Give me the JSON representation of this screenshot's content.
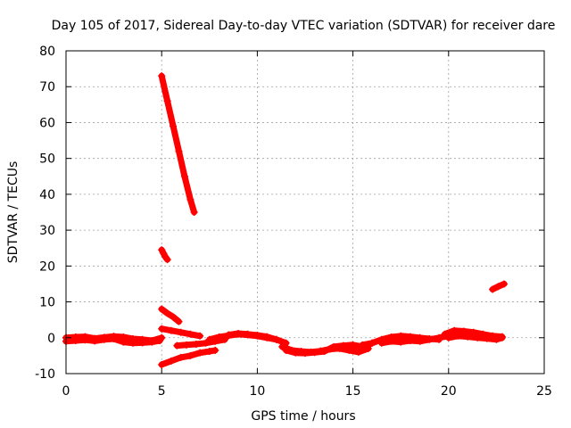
{
  "chart_data": {
    "type": "scatter",
    "title": "Day 105 of 2017, Sidereal Day-to-day VTEC variation (SDTVAR) for receiver dare",
    "xlabel": "GPS time / hours",
    "ylabel": "SDTVAR / TECUs",
    "xlim": [
      0,
      25
    ],
    "ylim": [
      -10,
      80
    ],
    "x_ticks": [
      0,
      5,
      10,
      15,
      20,
      25
    ],
    "y_ticks": [
      -10,
      0,
      10,
      20,
      30,
      40,
      50,
      60,
      70,
      80
    ],
    "grid": true,
    "marker": "+",
    "series": [
      {
        "name": "SDTVAR",
        "color": "#ff0000",
        "segments": [
          {
            "x": [
              0.0,
              0.5,
              1.0,
              1.5,
              2.0,
              2.5,
              3.0,
              3.5,
              4.0,
              4.5,
              5.0
            ],
            "y": [
              0.0,
              0.2,
              0.3,
              -0.2,
              0.1,
              0.4,
              0.2,
              -0.3,
              -0.5,
              -0.8,
              0.0
            ]
          },
          {
            "x": [
              0.0,
              0.5,
              1.0,
              1.5,
              2.0,
              2.5,
              3.0,
              3.5,
              4.0,
              4.5,
              4.9
            ],
            "y": [
              -1.0,
              -0.8,
              -0.6,
              -0.9,
              -0.5,
              -0.3,
              -1.2,
              -1.5,
              -1.4,
              -1.2,
              -0.8
            ]
          },
          {
            "x": [
              5.0,
              5.3,
              5.6,
              5.9,
              6.2,
              6.5,
              6.7
            ],
            "y": [
              73.0,
              66.0,
              59.0,
              52.0,
              45.0,
              38.5,
              35.0
            ]
          },
          {
            "x": [
              5.0,
              5.1,
              5.2,
              5.3
            ],
            "y": [
              24.5,
              23.5,
              22.5,
              21.8
            ]
          },
          {
            "x": [
              5.0,
              5.3,
              5.6,
              5.9
            ],
            "y": [
              8.0,
              6.8,
              5.8,
              4.5
            ]
          },
          {
            "x": [
              5.0,
              5.5,
              6.0,
              6.5,
              7.0
            ],
            "y": [
              2.5,
              2.0,
              1.5,
              1.0,
              0.5
            ]
          },
          {
            "x": [
              5.0,
              5.5,
              6.0,
              6.5,
              7.0,
              7.5,
              7.8
            ],
            "y": [
              -7.5,
              -6.5,
              -5.5,
              -5.0,
              -4.2,
              -3.8,
              -3.5
            ]
          },
          {
            "x": [
              5.8,
              6.3,
              6.8,
              7.3,
              7.8,
              8.3
            ],
            "y": [
              -2.2,
              -2.0,
              -1.8,
              -1.5,
              -1.0,
              -0.5
            ]
          },
          {
            "x": [
              7.5,
              8.0,
              8.5,
              9.0,
              9.5,
              10.0,
              10.5,
              11.0
            ],
            "y": [
              -0.5,
              0.2,
              0.6,
              1.0,
              0.8,
              0.5,
              0.0,
              -0.5
            ]
          },
          {
            "x": [
              8.5,
              9.0,
              9.5,
              10.0,
              10.5,
              11.0,
              11.5
            ],
            "y": [
              0.8,
              1.2,
              1.0,
              0.7,
              0.3,
              -0.5,
              -1.5
            ]
          },
          {
            "x": [
              11.3,
              11.8,
              12.3,
              12.8,
              13.3,
              13.8,
              14.3,
              14.8,
              15.3,
              15.8
            ],
            "y": [
              -2.5,
              -3.5,
              -3.8,
              -4.0,
              -3.7,
              -3.2,
              -3.0,
              -3.5,
              -4.0,
              -3.0
            ]
          },
          {
            "x": [
              11.5,
              12.0,
              12.5,
              13.0,
              13.5,
              14.0,
              14.5,
              15.0,
              15.5,
              16.0
            ],
            "y": [
              -3.5,
              -4.2,
              -4.3,
              -4.1,
              -3.8,
              -2.5,
              -2.2,
              -2.0,
              -2.5,
              -1.5
            ]
          },
          {
            "x": [
              15.5,
              16.0,
              16.5,
              17.0,
              17.5,
              18.0,
              18.5,
              19.0,
              19.5
            ],
            "y": [
              -2.0,
              -1.5,
              -0.5,
              0.2,
              0.5,
              0.3,
              0.0,
              -0.3,
              -0.5
            ]
          },
          {
            "x": [
              16.5,
              17.0,
              17.5,
              18.0,
              18.5,
              19.0,
              19.5,
              20.0
            ],
            "y": [
              -1.5,
              -1.0,
              -1.2,
              -0.8,
              -1.0,
              -0.5,
              0.0,
              0.5
            ]
          },
          {
            "x": [
              19.8,
              20.3,
              20.8,
              21.3,
              21.8,
              22.3,
              22.8
            ],
            "y": [
              1.0,
              2.0,
              1.8,
              1.5,
              1.0,
              0.5,
              0.3
            ]
          },
          {
            "x": [
              20.0,
              20.5,
              21.0,
              21.5,
              22.0,
              22.5,
              22.8
            ],
            "y": [
              0.0,
              0.5,
              0.3,
              0.0,
              -0.2,
              -0.5,
              0.0
            ]
          },
          {
            "x": [
              22.3,
              22.6,
              22.9
            ],
            "y": [
              13.5,
              14.3,
              15.0
            ]
          }
        ]
      }
    ]
  }
}
